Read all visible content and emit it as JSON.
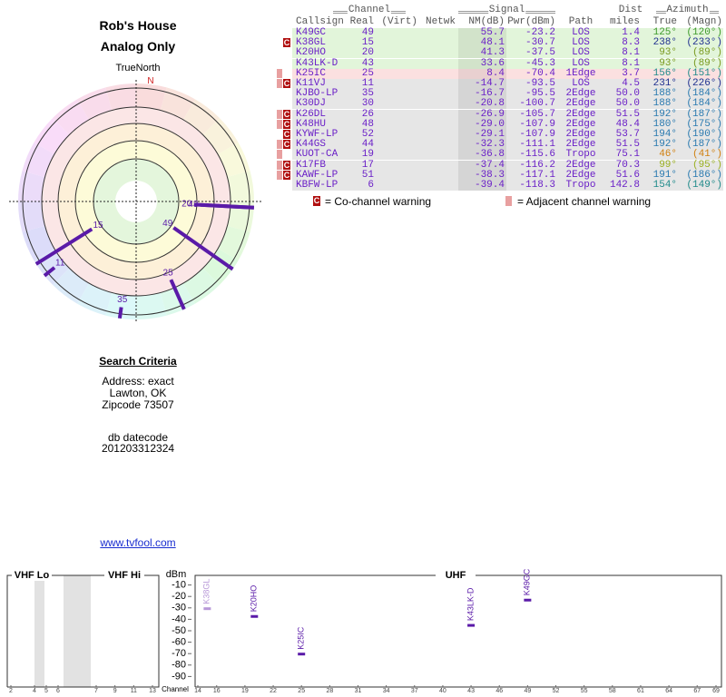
{
  "header": {
    "title": "Rob's House",
    "subtitle": "Analog Only"
  },
  "polar": {
    "north_label": "TrueNorth",
    "north": "N",
    "labels": [
      "49",
      "15",
      "20",
      "43",
      "25",
      "11",
      "35"
    ],
    "azimuth": [
      125,
      238,
      93,
      93,
      156,
      231,
      188
    ],
    "nm": [
      55.7,
      48.1,
      41.3,
      33.6,
      8.4,
      -14.7,
      -16.7
    ],
    "rlim": [
      110,
      -30
    ],
    "color": "#5a1aa8"
  },
  "table": {
    "groups": [
      "Channel",
      "Signal",
      "Dist",
      "Azimuth"
    ],
    "columns": {
      "callsign": "Callsign",
      "real": "Real",
      "virt": "(Virt)",
      "netwk": "Netwk",
      "nm": "NM(dB)",
      "pwr": "Pwr(dBm)",
      "path": "Path",
      "dist": "miles",
      "true": "True",
      "magn": "(Magn)"
    },
    "rows": [
      {
        "callsign": "K49GC",
        "real": "49",
        "nm": "55.7",
        "pwr": "-23.2",
        "path": "LOS",
        "dist": "1.4",
        "true": "125°",
        "magn": "(120°)",
        "bg": "#e2f5da",
        "az_color": "#3d9a2b"
      },
      {
        "callsign": "K38GL",
        "real": "15",
        "nm": "48.1",
        "pwr": "-30.7",
        "path": "LOS",
        "dist": "8.3",
        "true": "238°",
        "magn": "(233°)",
        "bg": "#e2f5da",
        "az_color": "#1f2f8f",
        "co": true
      },
      {
        "callsign": "K20HO",
        "real": "20",
        "nm": "41.3",
        "pwr": "-37.5",
        "path": "LOS",
        "dist": "8.1",
        "true": "93°",
        "magn": "(89°)",
        "bg": "#e2f5da",
        "az_color": "#7a9a20"
      },
      {
        "callsign": "K43LK-D",
        "real": "43",
        "nm": "33.6",
        "pwr": "-45.3",
        "path": "LOS",
        "dist": "8.1",
        "true": "93°",
        "magn": "(89°)",
        "bg": "#e2f5da",
        "az_color": "#7a9a20"
      },
      {
        "callsign": "K25IC",
        "real": "25",
        "nm": "8.4",
        "pwr": "-70.4",
        "path": "1Edge",
        "dist": "3.7",
        "true": "156°",
        "magn": "(151°)",
        "bg": "#fbe0e0",
        "az_color": "#1f8a8a",
        "adj": true
      },
      {
        "callsign": "K11VJ",
        "real": "11",
        "nm": "-14.7",
        "pwr": "-93.5",
        "path": "LOS",
        "dist": "4.5",
        "true": "231°",
        "magn": "(226°)",
        "bg": "#e6e6e6",
        "az_color": "#1f2f8f",
        "co": true,
        "adj": true
      },
      {
        "callsign": "KJBO-LP",
        "real": "35",
        "nm": "-16.7",
        "pwr": "-95.5",
        "path": "2Edge",
        "dist": "50.0",
        "true": "188°",
        "magn": "(184°)",
        "bg": "#e6e6e6",
        "az_color": "#2a7ab0"
      },
      {
        "callsign": "K30DJ",
        "real": "30",
        "nm": "-20.8",
        "pwr": "-100.7",
        "path": "2Edge",
        "dist": "50.0",
        "true": "188°",
        "magn": "(184°)",
        "bg": "#e6e6e6",
        "az_color": "#2a7ab0"
      },
      {
        "callsign": "K26DL",
        "real": "26",
        "nm": "-26.9",
        "pwr": "-105.7",
        "path": "2Edge",
        "dist": "51.5",
        "true": "192°",
        "magn": "(187°)",
        "bg": "#e6e6e6",
        "az_color": "#2a7ab0",
        "co": true,
        "adj": true
      },
      {
        "callsign": "K48HU",
        "real": "48",
        "nm": "-29.0",
        "pwr": "-107.9",
        "path": "2Edge",
        "dist": "48.4",
        "true": "180°",
        "magn": "(175°)",
        "bg": "#e6e6e6",
        "az_color": "#2a7ab0",
        "co": true,
        "adj": true
      },
      {
        "callsign": "KYWF-LP",
        "real": "52",
        "nm": "-29.1",
        "pwr": "-107.9",
        "path": "2Edge",
        "dist": "53.7",
        "true": "194°",
        "magn": "(190°)",
        "bg": "#e6e6e6",
        "az_color": "#2a7ab0",
        "co": true
      },
      {
        "callsign": "K44GS",
        "real": "44",
        "nm": "-32.3",
        "pwr": "-111.1",
        "path": "2Edge",
        "dist": "51.5",
        "true": "192°",
        "magn": "(187°)",
        "bg": "#e6e6e6",
        "az_color": "#2a7ab0",
        "co": true,
        "adj": true
      },
      {
        "callsign": "KUOT-CA",
        "real": "19",
        "nm": "-36.8",
        "pwr": "-115.6",
        "path": "Tropo",
        "dist": "75.1",
        "true": "46°",
        "magn": "(41°)",
        "bg": "#e6e6e6",
        "az_color": "#d08010",
        "adj": true
      },
      {
        "callsign": "K17FB",
        "real": "17",
        "nm": "-37.4",
        "pwr": "-116.2",
        "path": "2Edge",
        "dist": "70.3",
        "true": "99°",
        "magn": "(95°)",
        "bg": "#e6e6e6",
        "az_color": "#9ab020",
        "co": true,
        "adj": true
      },
      {
        "callsign": "KAWF-LP",
        "real": "51",
        "nm": "-38.3",
        "pwr": "-117.1",
        "path": "2Edge",
        "dist": "51.6",
        "true": "191°",
        "magn": "(186°)",
        "bg": "#e6e6e6",
        "az_color": "#2a7ab0",
        "co": true,
        "adj": true
      },
      {
        "callsign": "KBFW-LP",
        "real": "6",
        "nm": "-39.4",
        "pwr": "-118.3",
        "path": "Tropo",
        "dist": "142.8",
        "true": "154°",
        "magn": "(149°)",
        "bg": "#e6e6e6",
        "az_color": "#1f8a8a"
      }
    ]
  },
  "legend": {
    "co_symbol": "C",
    "co": "= Co-channel warning",
    "adj": "= Adjacent channel warning"
  },
  "search": {
    "title": "Search Criteria",
    "lines": [
      "Address: exact",
      "Lawton, OK",
      "Zipcode 73507"
    ],
    "db_label": "db datecode",
    "db": "201203312324"
  },
  "link": "www.tvfool.com",
  "chart_data": {
    "type": "spectrum",
    "y_label": "dBm",
    "x_label": "Channel",
    "ylim": [
      0,
      -100
    ],
    "yticks": [
      -10,
      -20,
      -30,
      -40,
      -50,
      -60,
      -70,
      -80,
      -90
    ],
    "bands": [
      {
        "name": "VHF Lo",
        "xlim": [
          2,
          6
        ],
        "xticks": [
          2,
          4,
          5,
          6
        ]
      },
      {
        "name": "VHF Hi",
        "xlim": [
          7,
          13
        ],
        "xticks": [
          7,
          9,
          11,
          13
        ]
      },
      {
        "name": "UHF",
        "xlim": [
          14,
          69
        ],
        "xticks": [
          14,
          16,
          19,
          22,
          25,
          28,
          31,
          34,
          37,
          40,
          43,
          46,
          49,
          52,
          55,
          58,
          61,
          64,
          67,
          69
        ]
      }
    ],
    "x": [
      15,
      20,
      25,
      43,
      49
    ],
    "values": [
      -30.7,
      -37.5,
      -70.4,
      -45.3,
      -23.2
    ],
    "labels": [
      "K38GL",
      "K20HO",
      "K25IC",
      "K43LK-D",
      "K49GC"
    ],
    "colors": [
      "#b898d8",
      "#5a1aa8",
      "#5a1aa8",
      "#5a1aa8",
      "#5a1aa8"
    ]
  }
}
